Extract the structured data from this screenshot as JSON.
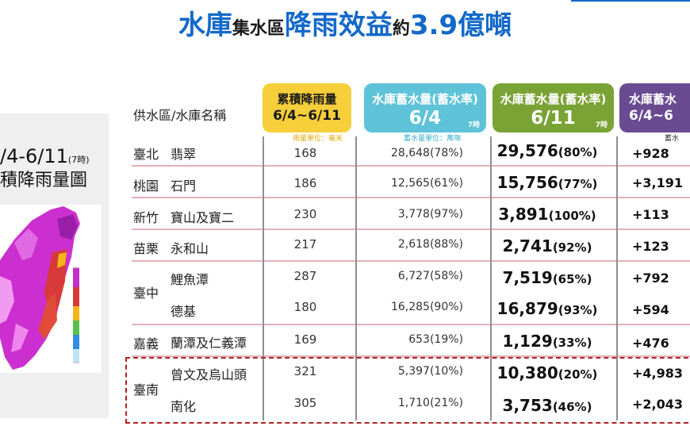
{
  "title": {
    "part1": "水庫",
    "part2": "集水區",
    "part3": "降雨效益",
    "part4": "約",
    "part5": "3.9億噸"
  },
  "map_panel": {
    "date_range": "/4-6/11",
    "date_note": "(7時)",
    "title": "積降雨量圖"
  },
  "headers": {
    "supply_label": "供水區/水庫名稱",
    "rain_line1": "累積降雨量",
    "rain_line2": "6/4~6/11",
    "rain_unit": "雨量單位：毫米",
    "s64_line1": "水庫蓄水量(蓄水率)",
    "s64_line2": "6/4",
    "s64_note": "7時",
    "s64_unit": "蓄水量單位：萬噸",
    "s611_line1": "水庫蓄水量(蓄水率)",
    "s611_line2": "6/11",
    "s611_note": "7時",
    "inc_line1": "水庫蓄水",
    "inc_line2": "6/4~6",
    "inc_unit": "蓄水"
  },
  "rows": [
    {
      "region": "臺北",
      "reservoir": "翡翠",
      "rain": "168",
      "s64": "28,648(78%)",
      "s611": "29,576",
      "s611_pct": "(80%)",
      "inc": "+928"
    },
    {
      "region": "桃園",
      "reservoir": "石門",
      "rain": "186",
      "s64": "12,565(61%)",
      "s611": "15,756",
      "s611_pct": "(77%)",
      "inc": "+3,191"
    },
    {
      "region": "新竹",
      "reservoir": "寶山及寶二",
      "rain": "230",
      "s64": "3,778(97%)",
      "s611": "3,891",
      "s611_pct": "(100%)",
      "inc": "+113"
    },
    {
      "region": "苗栗",
      "reservoir": "永和山",
      "rain": "217",
      "s64": "2,618(88%)",
      "s611": "2,741",
      "s611_pct": "(92%)",
      "inc": "+123"
    },
    {
      "region": "臺中",
      "reservoir": "鯉魚潭",
      "rain": "287",
      "s64": "6,727(58%)",
      "s611": "7,519",
      "s611_pct": "(65%)",
      "inc": "+792"
    },
    {
      "region": "",
      "reservoir": "德基",
      "rain": "180",
      "s64": "16,285(90%)",
      "s611": "16,879",
      "s611_pct": "(93%)",
      "inc": "+594"
    },
    {
      "region": "嘉義",
      "reservoir": "蘭潭及仁義潭",
      "rain": "169",
      "s64": "653(19%)",
      "s611": "1,129",
      "s611_pct": "(33%)",
      "inc": "+476"
    },
    {
      "region": "臺南",
      "reservoir": "曾文及烏山頭",
      "rain": "321",
      "s64": "5,397(10%)",
      "s611": "10,380",
      "s611_pct": "(20%)",
      "inc": "+4,983"
    },
    {
      "region": "",
      "reservoir": "南化",
      "rain": "305",
      "s64": "1,710(21%)",
      "s611": "3,753",
      "s611_pct": "(46%)",
      "inc": "+2,043"
    }
  ],
  "colors": {
    "title_blue": "#1369c9",
    "rain_header": "#f7cf3b",
    "s64_header": "#5ec3d9",
    "s611_header": "#7aa335",
    "inc_header": "#6a4b92",
    "highlight_border": "#b22222"
  }
}
